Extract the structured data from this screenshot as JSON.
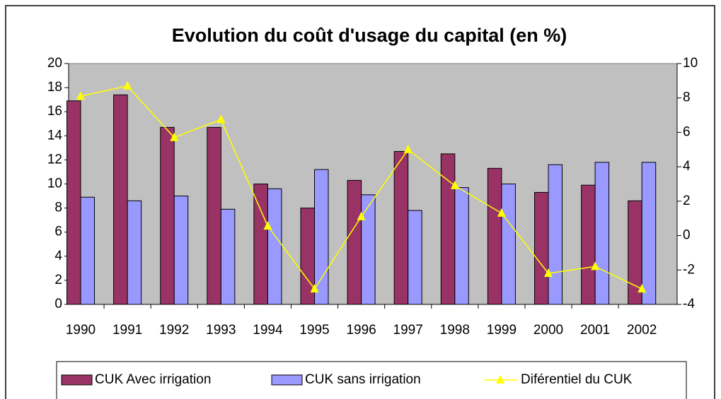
{
  "chart_data": {
    "type": "bar",
    "title": "Evolution du coût d'usage du capital (en %)",
    "categories": [
      "1990",
      "1991",
      "1992",
      "1993",
      "1994",
      "1995",
      "1996",
      "1997",
      "1998",
      "1999",
      "2000",
      "2001",
      "2002"
    ],
    "series": [
      {
        "name": "CUK Avec irrigation",
        "color": "#993366",
        "type": "bar",
        "values": [
          16.9,
          17.4,
          14.7,
          14.7,
          10.0,
          8.0,
          10.3,
          12.7,
          12.5,
          11.3,
          9.3,
          9.9,
          8.6
        ]
      },
      {
        "name": "CUK sans irrigation",
        "color": "#9999ff",
        "type": "bar",
        "values": [
          8.9,
          8.6,
          9.0,
          7.9,
          9.6,
          11.2,
          9.1,
          7.8,
          9.7,
          10.0,
          11.6,
          11.8,
          11.8
        ]
      },
      {
        "name": "Diférentiel du CUK",
        "color": "#ffff00",
        "type": "line",
        "axis": "y2",
        "values": [
          8.1,
          8.7,
          5.7,
          6.75,
          0.55,
          -3.1,
          1.1,
          5.0,
          2.9,
          1.3,
          -2.2,
          -1.8,
          -3.1
        ]
      }
    ],
    "ylim": [
      0,
      20
    ],
    "yticks": [
      0,
      2,
      4,
      6,
      8,
      10,
      12,
      14,
      16,
      18,
      20
    ],
    "y2lim": [
      -4,
      10
    ],
    "y2ticks": [
      -4,
      -2,
      0,
      2,
      4,
      6,
      8,
      10
    ],
    "legend": "bottom"
  }
}
